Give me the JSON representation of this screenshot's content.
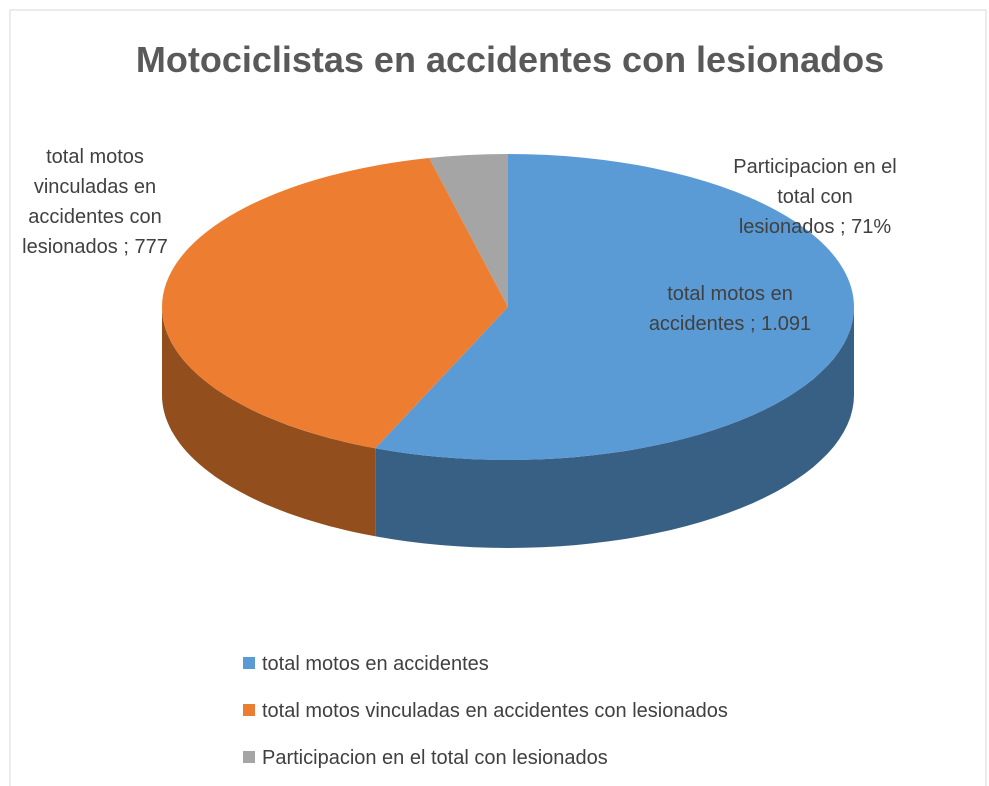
{
  "chart_data": {
    "type": "pie3d",
    "title": "Motociclistas en accidentes con lesionados",
    "categories": [
      "total motos en accidentes",
      "total motos vinculadas en accidentes con lesionados",
      "Participacion en el total con lesionados"
    ],
    "values": [
      1091,
      777,
      71
    ],
    "value_labels": [
      "1.091",
      "777",
      "71%"
    ],
    "label_separator": " ; ",
    "colors": [
      "#5b9bd5",
      "#ed7d31",
      "#a5a5a5"
    ],
    "legend": "bottom"
  }
}
